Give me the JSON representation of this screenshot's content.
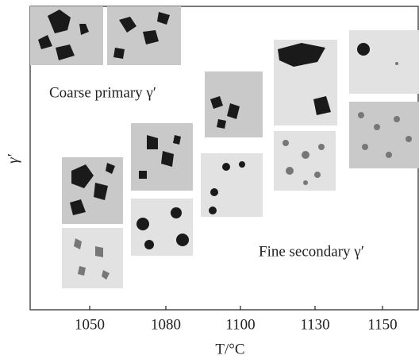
{
  "chart_data": {
    "type": "image-panels",
    "categories": [
      "1050",
      "1080",
      "1100",
      "1130",
      "1150"
    ],
    "xlabel": "T/°C",
    "ylabel": "γ′",
    "annotations": [
      "Coarse primary γ′",
      "Fine secondary γ′"
    ]
  }
}
